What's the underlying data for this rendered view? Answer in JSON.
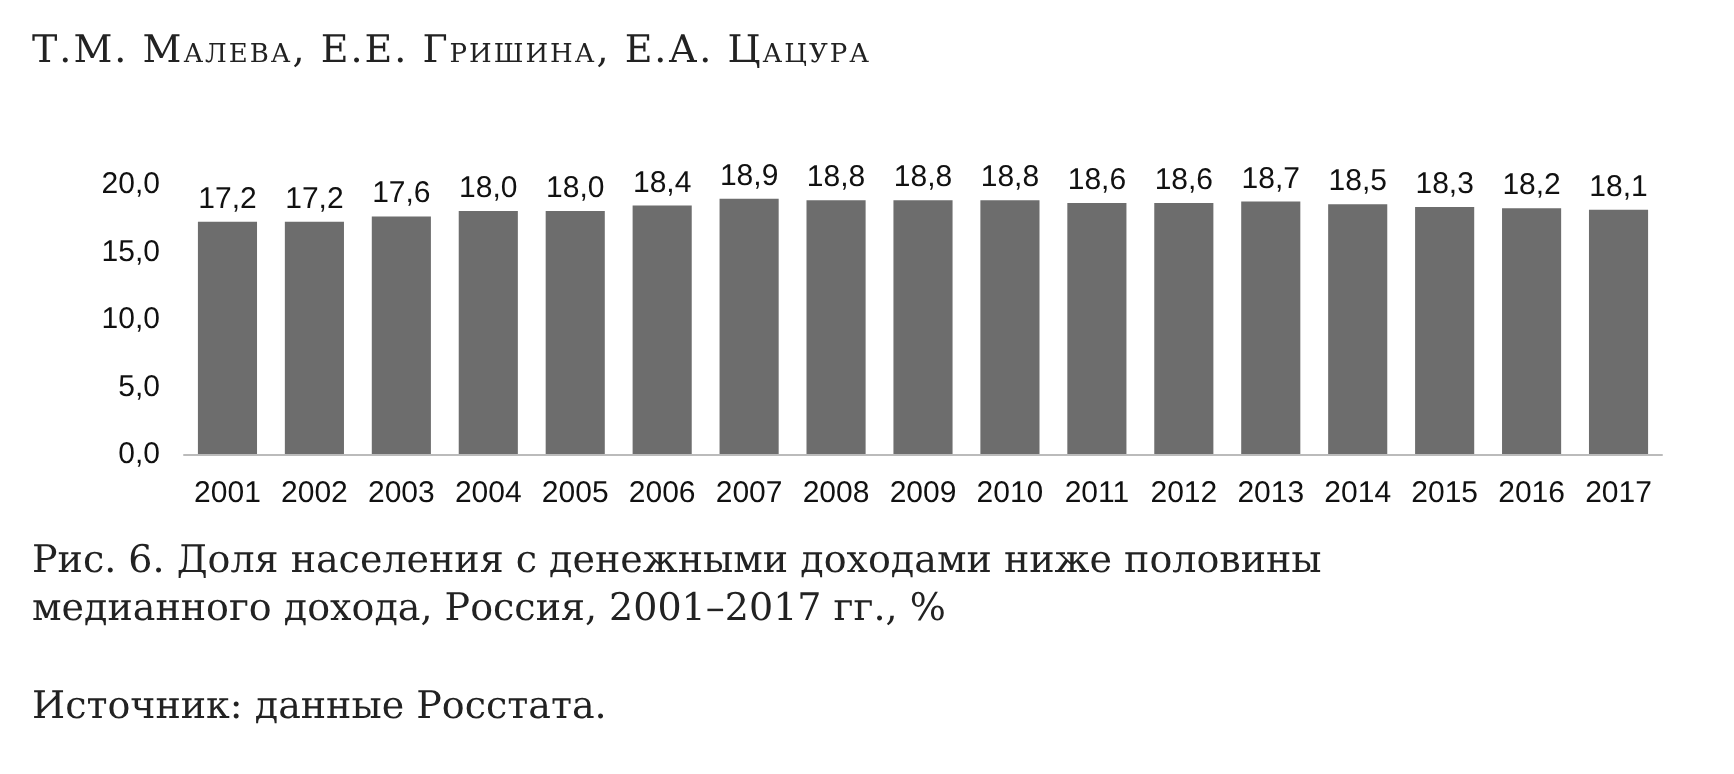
{
  "chart_data": {
    "type": "bar",
    "title": "Рис. 6. Доля населения с денежными доходами ниже половины медианного дохода, Россия, 2001–2017 гг., %",
    "annotations": [
      "Т.М. Малева, Е.Е. Гришина, Е.А. Цацура",
      "Источник: данные Росстата."
    ],
    "categories": [
      "2001",
      "2002",
      "2003",
      "2004",
      "2005",
      "2006",
      "2007",
      "2008",
      "2009",
      "2010",
      "2011",
      "2012",
      "2013",
      "2014",
      "2015",
      "2016",
      "2017"
    ],
    "values": [
      17.2,
      17.2,
      17.6,
      18.0,
      18.0,
      18.4,
      18.9,
      18.8,
      18.8,
      18.8,
      18.6,
      18.6,
      18.7,
      18.5,
      18.3,
      18.2,
      18.1
    ],
    "value_labels": [
      "17,2",
      "17,2",
      "17,6",
      "18,0",
      "18,0",
      "18,4",
      "18,9",
      "18,8",
      "18,8",
      "18,8",
      "18,6",
      "18,6",
      "18,7",
      "18,5",
      "18,3",
      "18,2",
      "18,1"
    ],
    "color": "#6d6d6d",
    "ylim": [
      0,
      20
    ],
    "yticks": [
      {
        "value": 0,
        "label": "0,0"
      },
      {
        "value": 5,
        "label": "5,0"
      },
      {
        "value": 10,
        "label": "10,0"
      },
      {
        "value": 15,
        "label": "15,0"
      },
      {
        "value": 20,
        "label": "20,0"
      }
    ],
    "grid": false
  }
}
